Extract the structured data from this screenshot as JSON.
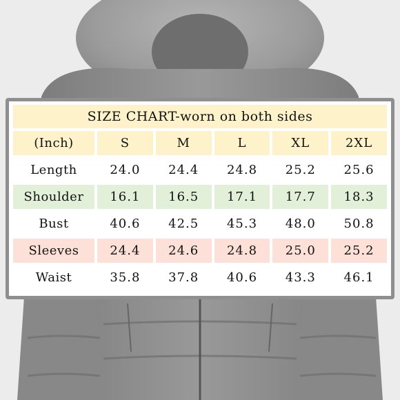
{
  "chart": {
    "title": "SIZE CHART-worn on both sides",
    "unit_label": "(Inch)",
    "sizes": [
      "S",
      "M",
      "L",
      "XL",
      "2XL"
    ],
    "rows": [
      {
        "label": "Length",
        "values": [
          "24.0",
          "24.4",
          "24.8",
          "25.2",
          "25.6"
        ]
      },
      {
        "label": "Shoulder",
        "values": [
          "16.1",
          "16.5",
          "17.1",
          "17.7",
          "18.3"
        ]
      },
      {
        "label": "Bust",
        "values": [
          "40.6",
          "42.5",
          "45.3",
          "48.0",
          "50.8"
        ]
      },
      {
        "label": "Sleeves",
        "values": [
          "24.4",
          "24.6",
          "24.8",
          "25.0",
          "25.2"
        ]
      },
      {
        "label": "Waist",
        "values": [
          "35.8",
          "37.8",
          "40.6",
          "43.3",
          "46.1"
        ]
      }
    ]
  },
  "colors": {
    "header_fill": "#fdf2c9",
    "shoulder_fill": "#e2efd9",
    "sleeves_fill": "#fde1d8",
    "frame": "#8f8f8f",
    "jacket": "#8a8a8a"
  }
}
